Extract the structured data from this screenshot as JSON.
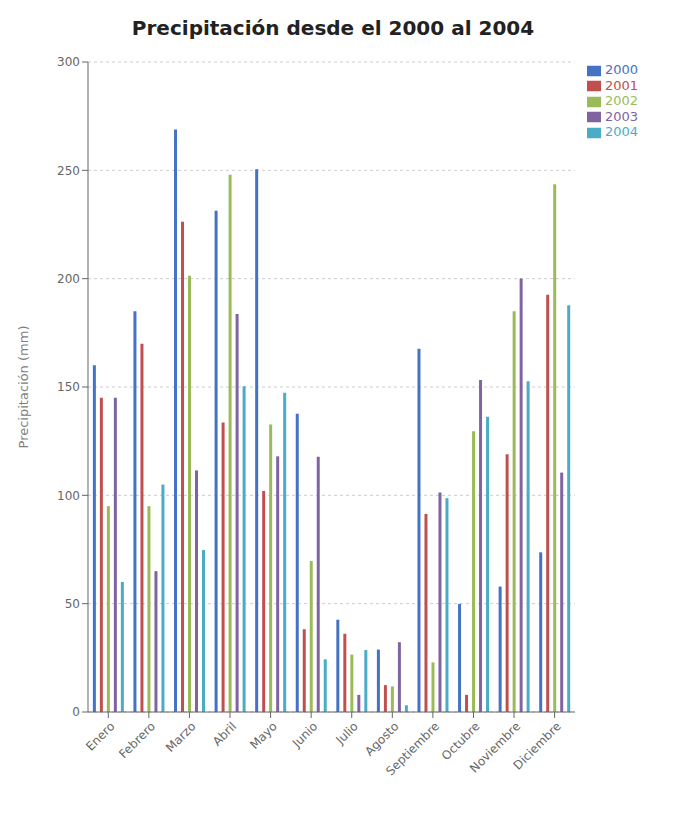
{
  "chart_data": {
    "type": "bar",
    "title": "Precipitación desde el 2000 al 2004",
    "categories": [
      "Enero",
      "Febrero",
      "Marzo",
      "Abril",
      "Mayo",
      "Junio",
      "Julio",
      "Agosto",
      "Septiembre",
      "Octubre",
      "Noviembre",
      "Diciembre"
    ],
    "series": [
      {
        "name": "2000",
        "color": "#4472C4",
        "values": [
          160.0,
          185.0,
          268.8,
          231.4,
          250.5,
          137.7,
          42.6,
          28.8,
          167.7,
          49.9,
          57.9,
          73.7
        ]
      },
      {
        "name": "2001",
        "color": "#C0504D",
        "values": [
          145.0,
          170.0,
          226.3,
          133.6,
          102.0,
          38.2,
          36.1,
          12.4,
          91.4,
          7.9,
          119.0,
          192.6
        ]
      },
      {
        "name": "2002",
        "color": "#9BBB59",
        "values": [
          95.0,
          95.0,
          201.4,
          248.0,
          132.7,
          69.7,
          26.5,
          11.8,
          22.9,
          129.6,
          185.0,
          243.6
        ]
      },
      {
        "name": "2003",
        "color": "#8064A2",
        "values": [
          145.0,
          65.0,
          111.5,
          183.7,
          118.0,
          117.8,
          7.9,
          32.2,
          101.3,
          153.2,
          200.1,
          110.5
        ]
      },
      {
        "name": "2004",
        "color": "#4BACC6",
        "values": [
          60.0,
          105.0,
          74.8,
          150.4,
          147.4,
          24.3,
          28.6,
          3.1,
          98.7,
          136.3,
          152.7,
          187.7
        ]
      }
    ],
    "y_label": "Precipitación (mm)",
    "ylim": [
      0,
      300
    ],
    "yticks": [
      0,
      50,
      100,
      150,
      200,
      250,
      300
    ],
    "grid": true,
    "legend": "right"
  }
}
